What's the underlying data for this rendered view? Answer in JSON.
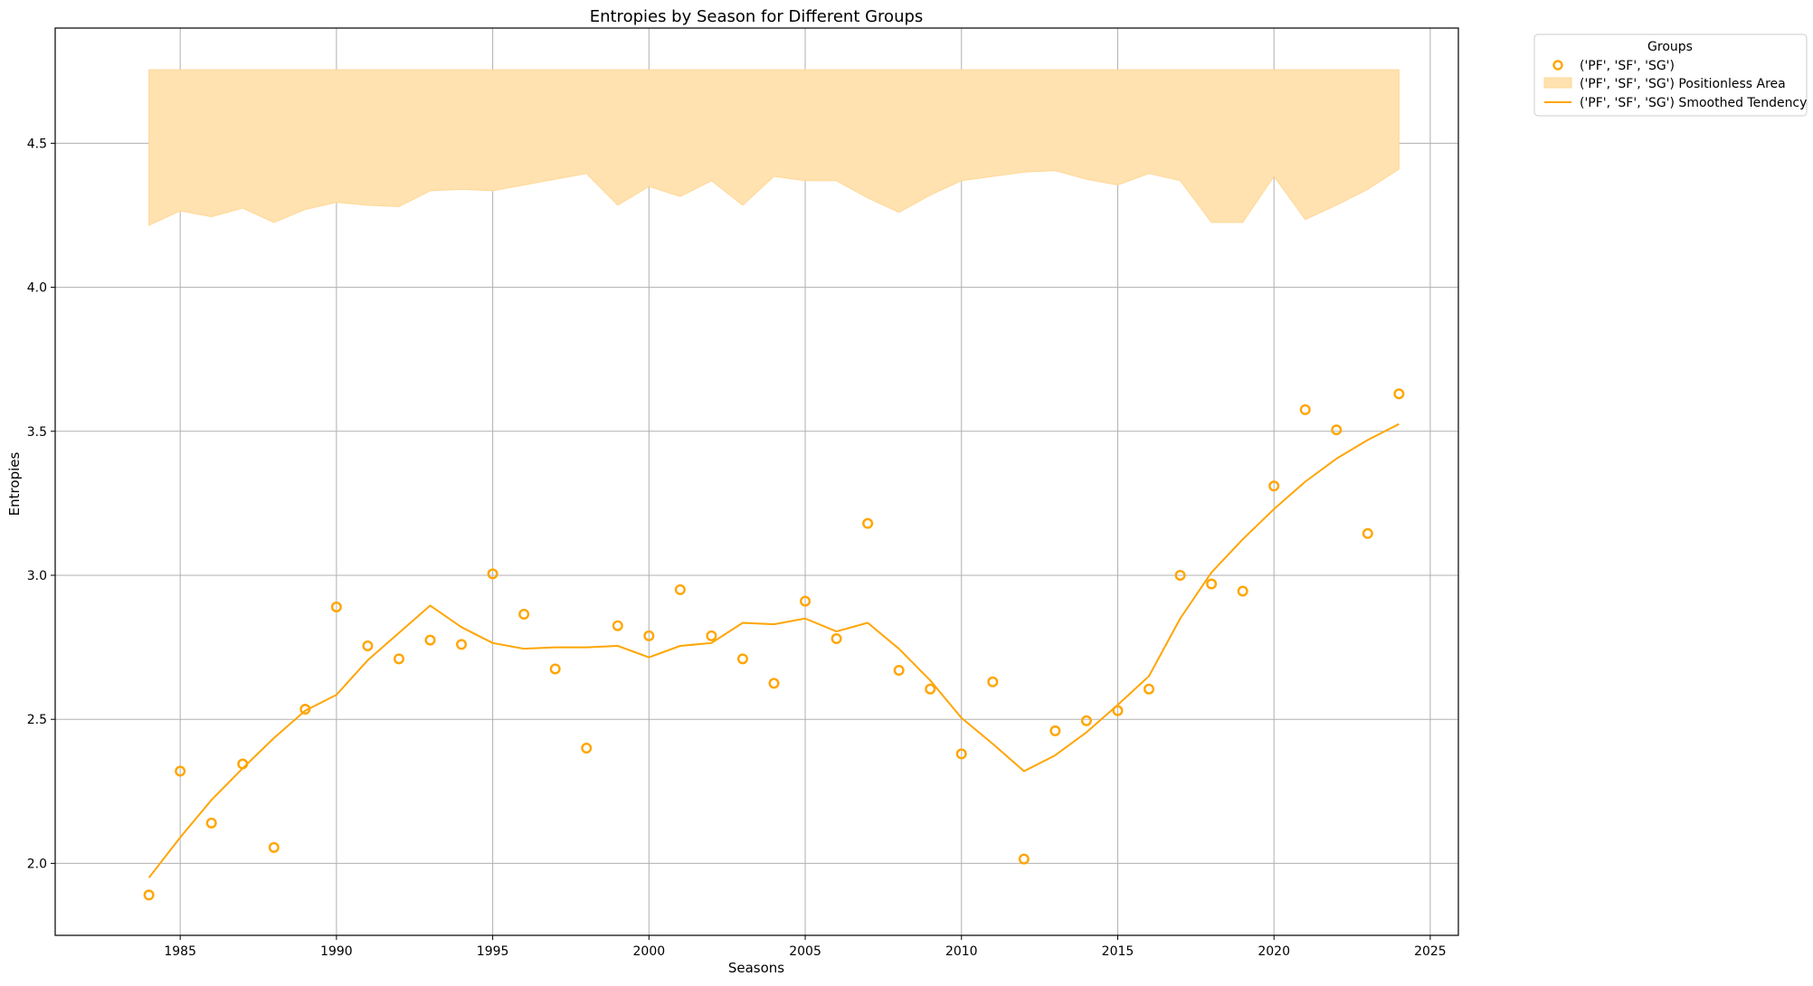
{
  "chart_data": {
    "type": "line",
    "title": "Entropies by Season for Different Groups",
    "xlabel": "Seasons",
    "ylabel": "Entropies",
    "xlim": [
      1981,
      2025.9
    ],
    "ylim": [
      1.75,
      4.9
    ],
    "x_ticks": [
      1985,
      1990,
      1995,
      2000,
      2005,
      2010,
      2015,
      2020,
      2025
    ],
    "y_ticks": [
      2.0,
      2.5,
      3.0,
      3.5,
      4.0,
      4.5
    ],
    "y_tick_labels": [
      "2.0",
      "2.5",
      "3.0",
      "3.5",
      "4.0",
      "4.5"
    ],
    "grid": true,
    "colors": {
      "accent": "#FFA500",
      "band_fill": "#FFE2AF",
      "grid": "#b0b0b0"
    },
    "legend": {
      "title": "Groups",
      "placement": "outside-top-right",
      "entries": [
        {
          "label": "('PF', 'SF', 'SG')",
          "kind": "marker"
        },
        {
          "label": "('PF', 'SF', 'SG') Positionless Area",
          "kind": "area"
        },
        {
          "label": "('PF', 'SF', 'SG') Smoothed Tendency",
          "kind": "line"
        }
      ]
    },
    "x": [
      1984,
      1985,
      1986,
      1987,
      1988,
      1989,
      1990,
      1991,
      1992,
      1993,
      1994,
      1995,
      1996,
      1997,
      1998,
      1999,
      2000,
      2001,
      2002,
      2003,
      2004,
      2005,
      2006,
      2007,
      2008,
      2009,
      2010,
      2011,
      2012,
      2013,
      2014,
      2015,
      2016,
      2017,
      2018,
      2019,
      2020,
      2021,
      2022,
      2023,
      2024
    ],
    "series": [
      {
        "name": "('PF', 'SF', 'SG')",
        "kind": "scatter",
        "values": [
          1.89,
          2.32,
          2.14,
          2.345,
          2.055,
          2.535,
          2.89,
          2.755,
          2.71,
          2.775,
          2.76,
          3.005,
          2.865,
          2.675,
          2.4,
          2.825,
          2.79,
          2.95,
          2.79,
          2.71,
          2.625,
          2.91,
          2.78,
          3.18,
          2.67,
          2.605,
          2.38,
          2.63,
          2.015,
          2.46,
          2.495,
          2.53,
          2.605,
          3.0,
          2.97,
          2.945,
          3.31,
          3.575,
          3.505,
          3.145,
          3.63
        ]
      },
      {
        "name": "('PF', 'SF', 'SG') Smoothed Tendency",
        "kind": "line",
        "values": [
          1.95,
          2.09,
          2.22,
          2.33,
          2.435,
          2.53,
          2.585,
          2.705,
          2.8,
          2.895,
          2.82,
          2.765,
          2.745,
          2.75,
          2.75,
          2.755,
          2.715,
          2.755,
          2.765,
          2.835,
          2.83,
          2.85,
          2.805,
          2.835,
          2.745,
          2.635,
          2.505,
          2.415,
          2.32,
          2.375,
          2.455,
          2.55,
          2.65,
          2.85,
          3.01,
          3.125,
          3.23,
          3.325,
          3.405,
          3.47,
          3.525
        ]
      },
      {
        "name": "('PF', 'SF', 'SG') Positionless Area",
        "kind": "area",
        "upper": [
          4.755,
          4.755,
          4.755,
          4.755,
          4.755,
          4.755,
          4.755,
          4.755,
          4.755,
          4.755,
          4.755,
          4.755,
          4.755,
          4.755,
          4.755,
          4.755,
          4.755,
          4.755,
          4.755,
          4.755,
          4.755,
          4.755,
          4.755,
          4.755,
          4.755,
          4.755,
          4.755,
          4.755,
          4.755,
          4.755,
          4.755,
          4.755,
          4.755,
          4.755,
          4.755,
          4.755,
          4.755,
          4.755,
          4.755,
          4.755,
          4.755
        ],
        "lower": [
          4.215,
          4.265,
          4.245,
          4.275,
          4.225,
          4.27,
          4.295,
          4.285,
          4.28,
          4.335,
          4.34,
          4.335,
          4.355,
          4.375,
          4.395,
          4.285,
          4.35,
          4.315,
          4.37,
          4.285,
          4.385,
          4.37,
          4.37,
          4.31,
          4.26,
          4.32,
          4.37,
          4.385,
          4.4,
          4.405,
          4.375,
          4.355,
          4.395,
          4.37,
          4.225,
          4.225,
          4.385,
          4.235,
          4.285,
          4.34,
          4.41
        ]
      }
    ]
  }
}
